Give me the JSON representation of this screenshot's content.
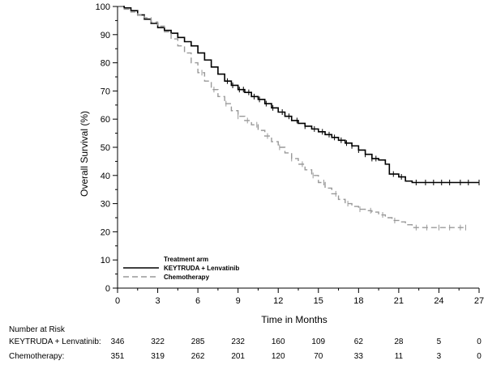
{
  "chart_data": {
    "type": "line",
    "title": "",
    "xlabel": "Time in Months",
    "ylabel": "Overall Survival (%)",
    "xlim": [
      0,
      27
    ],
    "ylim": [
      0,
      100
    ],
    "x_ticks": [
      0,
      3,
      6,
      9,
      12,
      15,
      18,
      21,
      24,
      27
    ],
    "y_ticks": [
      0,
      10,
      20,
      30,
      40,
      50,
      60,
      70,
      80,
      90,
      100
    ],
    "grid": false,
    "legend": {
      "title": "Treatment arm",
      "placement": "bottom-left"
    },
    "series": [
      {
        "name": "KEYTRUDA + Lenvatinib",
        "color": "#000000",
        "style": "solid",
        "points": [
          [
            0,
            100
          ],
          [
            0.5,
            99.5
          ],
          [
            1,
            98.5
          ],
          [
            1.5,
            97
          ],
          [
            2,
            95.5
          ],
          [
            2.5,
            94
          ],
          [
            3,
            92.5
          ],
          [
            3.5,
            91.5
          ],
          [
            4,
            90.5
          ],
          [
            4.5,
            89
          ],
          [
            5,
            87.5
          ],
          [
            5.5,
            86
          ],
          [
            6,
            83.5
          ],
          [
            6.5,
            81
          ],
          [
            7,
            78.5
          ],
          [
            7.5,
            76
          ],
          [
            8,
            73.5
          ],
          [
            8.5,
            72
          ],
          [
            9,
            70.5
          ],
          [
            9.5,
            69.5
          ],
          [
            10,
            68
          ],
          [
            10.5,
            67
          ],
          [
            11,
            65.5
          ],
          [
            11.5,
            64
          ],
          [
            12,
            62.5
          ],
          [
            12.5,
            61
          ],
          [
            13,
            59.5
          ],
          [
            13.5,
            58.5
          ],
          [
            14,
            57.5
          ],
          [
            14.5,
            56.5
          ],
          [
            15,
            55.5
          ],
          [
            15.5,
            54.5
          ],
          [
            16,
            53.5
          ],
          [
            16.5,
            52.5
          ],
          [
            17,
            51.5
          ],
          [
            17.5,
            50.5
          ],
          [
            18,
            49
          ],
          [
            18.5,
            47.5
          ],
          [
            19,
            46
          ],
          [
            19.5,
            45.5
          ],
          [
            20,
            44
          ],
          [
            20.3,
            40.5
          ],
          [
            21,
            39.5
          ],
          [
            21.5,
            38
          ],
          [
            22,
            37.5
          ],
          [
            27,
            37.5
          ]
        ],
        "censor_marks": [
          8.2,
          8.6,
          9.1,
          9.4,
          9.8,
          10.2,
          10.6,
          11.1,
          11.6,
          12.3,
          12.8,
          13.4,
          14.0,
          14.7,
          15.3,
          15.8,
          16.2,
          16.7,
          17.1,
          17.5,
          18.0,
          18.5,
          19.0,
          19.3,
          20.6,
          21.2,
          22.3,
          23.0,
          23.6,
          24.2,
          24.8,
          25.6,
          26.2,
          27.0
        ]
      },
      {
        "name": "Chemotherapy",
        "color": "#999999",
        "style": "dashed",
        "points": [
          [
            0,
            100
          ],
          [
            0.5,
            99
          ],
          [
            1,
            98
          ],
          [
            1.5,
            97
          ],
          [
            2,
            96
          ],
          [
            2.5,
            94.5
          ],
          [
            3,
            93
          ],
          [
            3.5,
            91
          ],
          [
            4,
            88.5
          ],
          [
            4.5,
            86
          ],
          [
            5,
            83.5
          ],
          [
            5.5,
            80
          ],
          [
            6,
            76.5
          ],
          [
            6.5,
            73.5
          ],
          [
            7,
            70.5
          ],
          [
            7.5,
            68
          ],
          [
            8,
            65.5
          ],
          [
            8.5,
            63
          ],
          [
            9,
            61
          ],
          [
            9.5,
            59.5
          ],
          [
            10,
            58
          ],
          [
            10.5,
            56
          ],
          [
            11,
            54
          ],
          [
            11.5,
            52
          ],
          [
            12,
            50
          ],
          [
            12.5,
            48
          ],
          [
            13,
            46
          ],
          [
            13.5,
            44
          ],
          [
            14,
            42
          ],
          [
            14.5,
            40
          ],
          [
            15,
            37.5
          ],
          [
            15.5,
            35.5
          ],
          [
            16,
            33.5
          ],
          [
            16.5,
            31.5
          ],
          [
            17,
            30
          ],
          [
            17.5,
            29
          ],
          [
            18,
            28
          ],
          [
            18.5,
            27.5
          ],
          [
            19,
            27
          ],
          [
            19.5,
            26
          ],
          [
            20,
            25
          ],
          [
            20.5,
            24
          ],
          [
            21,
            23.5
          ],
          [
            21.5,
            22.5
          ],
          [
            22,
            21.5
          ],
          [
            26,
            21.5
          ]
        ],
        "censor_marks": [
          6.3,
          7.2,
          8.1,
          9.0,
          9.7,
          10.4,
          11.2,
          12.1,
          13.0,
          13.8,
          14.6,
          15.4,
          16.3,
          17.2,
          18.1,
          18.9,
          19.8,
          20.7,
          22.3,
          23.1,
          24.0,
          24.8,
          25.6,
          26.0
        ]
      }
    ]
  },
  "risk_table": {
    "heading": "Number at Risk",
    "rows": [
      {
        "label": "KEYTRUDA + Lenvatinib:",
        "values": [
          "346",
          "322",
          "285",
          "232",
          "160",
          "109",
          "62",
          "28",
          "5",
          "0"
        ]
      },
      {
        "label": "Chemotherapy:",
        "values": [
          "351",
          "319",
          "262",
          "201",
          "120",
          "70",
          "33",
          "11",
          "3",
          "0"
        ]
      }
    ]
  }
}
